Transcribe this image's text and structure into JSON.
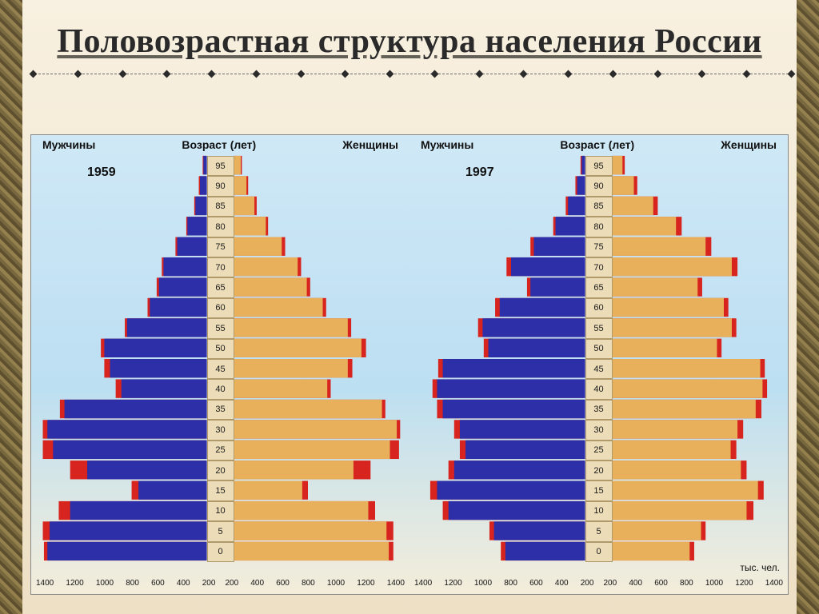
{
  "title": "Половозрастная структура населения России",
  "background_gradient": [
    "#f8f0e0",
    "#ede0c5"
  ],
  "chart_bg_gradient": [
    "#cfe8f6",
    "#bcdff2",
    "#f4edda"
  ],
  "border_texture_colors": [
    "#6b5a2e",
    "#8a753f",
    "#4d3f1c"
  ],
  "rule_dot_count": 18,
  "colors": {
    "male": "#2c2fa8",
    "male_highlight": "#d8241e",
    "female": "#e8b05a",
    "female_highlight": "#d8241e",
    "age_box_fill": "#ecdcb8",
    "age_box_border": "#b09a6a",
    "tick_text": "#111111"
  },
  "labels": {
    "men": "Мужчины",
    "women": "Женщины",
    "age": "Возраст (лет)",
    "unit": "тыс. чел."
  },
  "age_labels": [
    "0",
    "5",
    "10",
    "15",
    "20",
    "25",
    "30",
    "35",
    "40",
    "45",
    "50",
    "55",
    "60",
    "65",
    "70",
    "75",
    "80",
    "85",
    "90",
    "95"
  ],
  "x_ticks": [
    1400,
    1200,
    1000,
    800,
    600,
    400,
    200
  ],
  "xmax": 1500,
  "pyramids": [
    {
      "year": "1959",
      "male": [
        1400,
        1380,
        1200,
        600,
        1050,
        1350,
        1400,
        1250,
        750,
        850,
        900,
        700,
        500,
        420,
        380,
        260,
        170,
        100,
        60,
        30
      ],
      "female": [
        1360,
        1340,
        1180,
        600,
        1050,
        1370,
        1430,
        1300,
        820,
        1000,
        1120,
        1000,
        780,
        640,
        560,
        420,
        280,
        180,
        110,
        60
      ],
      "male_surplus": [
        1430,
        1440,
        1300,
        660,
        1200,
        1440,
        1440,
        1290,
        800,
        900,
        930,
        720,
        520,
        440,
        395,
        275,
        180,
        110,
        70,
        36
      ],
      "female_surplus": [
        1400,
        1400,
        1240,
        650,
        1200,
        1450,
        1460,
        1330,
        850,
        1040,
        1160,
        1030,
        810,
        670,
        590,
        450,
        300,
        200,
        125,
        70
      ]
    },
    {
      "year": "1997",
      "male": [
        700,
        800,
        1200,
        1300,
        1150,
        1050,
        1100,
        1250,
        1300,
        1250,
        850,
        900,
        750,
        480,
        650,
        450,
        260,
        150,
        70,
        30
      ],
      "female": [
        680,
        780,
        1180,
        1280,
        1130,
        1040,
        1100,
        1260,
        1320,
        1300,
        920,
        1050,
        980,
        750,
        1050,
        820,
        560,
        360,
        190,
        90
      ],
      "male_surplus": [
        740,
        840,
        1250,
        1360,
        1200,
        1100,
        1150,
        1300,
        1340,
        1290,
        890,
        940,
        790,
        510,
        690,
        480,
        280,
        170,
        85,
        40
      ],
      "female_surplus": [
        720,
        820,
        1240,
        1330,
        1180,
        1090,
        1150,
        1310,
        1360,
        1340,
        960,
        1090,
        1020,
        790,
        1100,
        870,
        610,
        400,
        220,
        110
      ]
    }
  ],
  "fonts": {
    "title_size": 42,
    "header_size": 14,
    "year_size": 16,
    "age_size": 11,
    "tick_size": 10
  }
}
